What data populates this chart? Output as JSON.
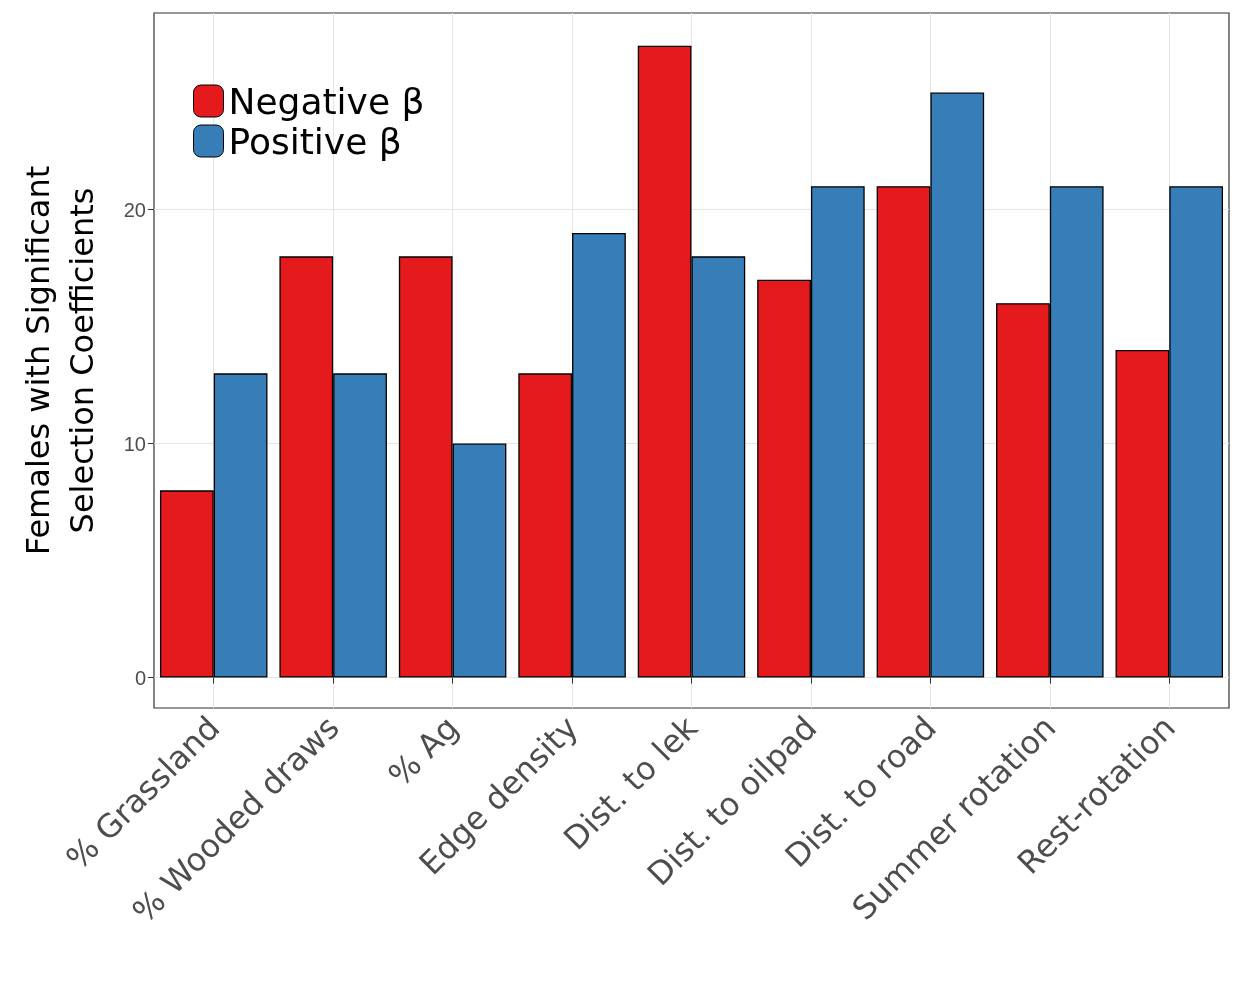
{
  "chart_data": {
    "type": "bar",
    "ylabel": "Females with Significant\nSelection Coefficients",
    "categories": [
      "% Grassland",
      "% Wooded draws",
      "% Ag",
      "Edge density",
      "Dist. to lek",
      "Dist. to oilpad",
      "Dist. to road",
      "Summer rotation",
      "Rest-rotation"
    ],
    "series": [
      {
        "name": "Negative β",
        "color": "#e41a1c",
        "values": [
          8,
          18,
          18,
          13,
          27,
          17,
          21,
          16,
          14
        ]
      },
      {
        "name": "Positive β",
        "color": "#377eb8",
        "values": [
          13,
          13,
          10,
          19,
          18,
          21,
          25,
          21,
          21
        ]
      }
    ],
    "ylim": [
      -1.3,
      28.4
    ],
    "yticks": [
      0,
      10,
      20
    ],
    "grid": true,
    "legend": "top left"
  }
}
